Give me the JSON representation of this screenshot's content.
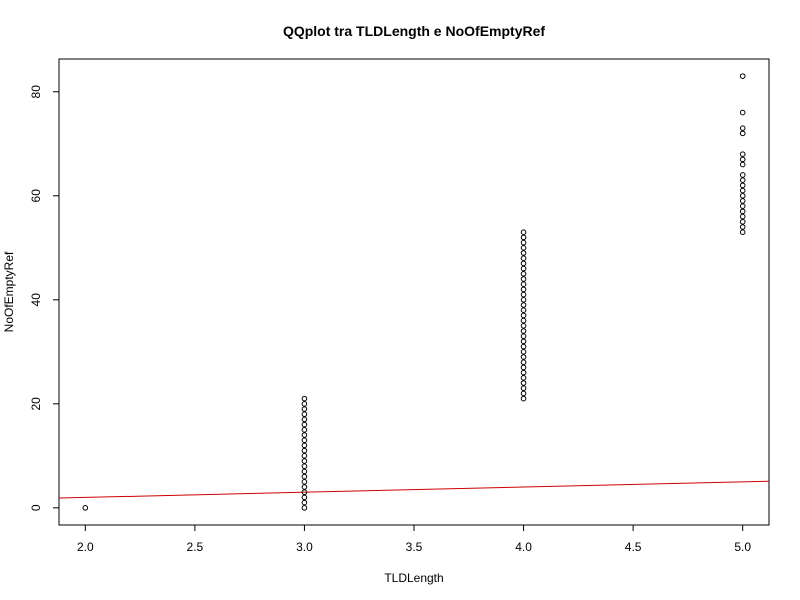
{
  "chart_data": {
    "type": "scatter",
    "title": "QQplot tra TLDLength e NoOfEmptyRef",
    "xlabel": "TLDLength",
    "ylabel": "NoOfEmptyRef",
    "xlim": [
      1.88,
      5.12
    ],
    "ylim": [
      -3.3,
      86.3
    ],
    "xticks": [
      2.0,
      2.5,
      3.0,
      3.5,
      4.0,
      4.5,
      5.0
    ],
    "xtick_labels": [
      "2.0",
      "2.5",
      "3.0",
      "3.5",
      "4.0",
      "4.5",
      "5.0"
    ],
    "yticks": [
      0,
      20,
      40,
      60,
      80
    ],
    "ytick_labels": [
      "0",
      "20",
      "40",
      "60",
      "80"
    ],
    "grid": false,
    "series": [
      {
        "points": [
          {
            "x": 2,
            "y": 0
          },
          {
            "x": 3,
            "y": 0
          },
          {
            "x": 3,
            "y": 1
          },
          {
            "x": 3,
            "y": 2
          },
          {
            "x": 3,
            "y": 3
          },
          {
            "x": 3,
            "y": 4
          },
          {
            "x": 3,
            "y": 5
          },
          {
            "x": 3,
            "y": 6
          },
          {
            "x": 3,
            "y": 7
          },
          {
            "x": 3,
            "y": 8
          },
          {
            "x": 3,
            "y": 9
          },
          {
            "x": 3,
            "y": 10
          },
          {
            "x": 3,
            "y": 11
          },
          {
            "x": 3,
            "y": 12
          },
          {
            "x": 3,
            "y": 13
          },
          {
            "x": 3,
            "y": 14
          },
          {
            "x": 3,
            "y": 15
          },
          {
            "x": 3,
            "y": 16
          },
          {
            "x": 3,
            "y": 17
          },
          {
            "x": 3,
            "y": 18
          },
          {
            "x": 3,
            "y": 19
          },
          {
            "x": 3,
            "y": 20
          },
          {
            "x": 3,
            "y": 21
          },
          {
            "x": 4,
            "y": 21
          },
          {
            "x": 4,
            "y": 22
          },
          {
            "x": 4,
            "y": 23
          },
          {
            "x": 4,
            "y": 24
          },
          {
            "x": 4,
            "y": 25
          },
          {
            "x": 4,
            "y": 26
          },
          {
            "x": 4,
            "y": 27
          },
          {
            "x": 4,
            "y": 28
          },
          {
            "x": 4,
            "y": 29
          },
          {
            "x": 4,
            "y": 30
          },
          {
            "x": 4,
            "y": 31
          },
          {
            "x": 4,
            "y": 32
          },
          {
            "x": 4,
            "y": 33
          },
          {
            "x": 4,
            "y": 34
          },
          {
            "x": 4,
            "y": 35
          },
          {
            "x": 4,
            "y": 36
          },
          {
            "x": 4,
            "y": 37
          },
          {
            "x": 4,
            "y": 38
          },
          {
            "x": 4,
            "y": 39
          },
          {
            "x": 4,
            "y": 40
          },
          {
            "x": 4,
            "y": 41
          },
          {
            "x": 4,
            "y": 42
          },
          {
            "x": 4,
            "y": 43
          },
          {
            "x": 4,
            "y": 44
          },
          {
            "x": 4,
            "y": 45
          },
          {
            "x": 4,
            "y": 46
          },
          {
            "x": 4,
            "y": 47
          },
          {
            "x": 4,
            "y": 48
          },
          {
            "x": 4,
            "y": 49
          },
          {
            "x": 4,
            "y": 50
          },
          {
            "x": 4,
            "y": 51
          },
          {
            "x": 4,
            "y": 52
          },
          {
            "x": 4,
            "y": 53
          },
          {
            "x": 5,
            "y": 53
          },
          {
            "x": 5,
            "y": 54
          },
          {
            "x": 5,
            "y": 55
          },
          {
            "x": 5,
            "y": 56
          },
          {
            "x": 5,
            "y": 57
          },
          {
            "x": 5,
            "y": 58
          },
          {
            "x": 5,
            "y": 59
          },
          {
            "x": 5,
            "y": 60
          },
          {
            "x": 5,
            "y": 61
          },
          {
            "x": 5,
            "y": 62
          },
          {
            "x": 5,
            "y": 63
          },
          {
            "x": 5,
            "y": 64
          },
          {
            "x": 5,
            "y": 66
          },
          {
            "x": 5,
            "y": 67
          },
          {
            "x": 5,
            "y": 68
          },
          {
            "x": 5,
            "y": 72
          },
          {
            "x": 5,
            "y": 73
          },
          {
            "x": 5,
            "y": 76
          },
          {
            "x": 5,
            "y": 83
          }
        ]
      }
    ],
    "reference_line": {
      "intercept": 0,
      "slope": 1,
      "color": "#cc0000"
    }
  }
}
